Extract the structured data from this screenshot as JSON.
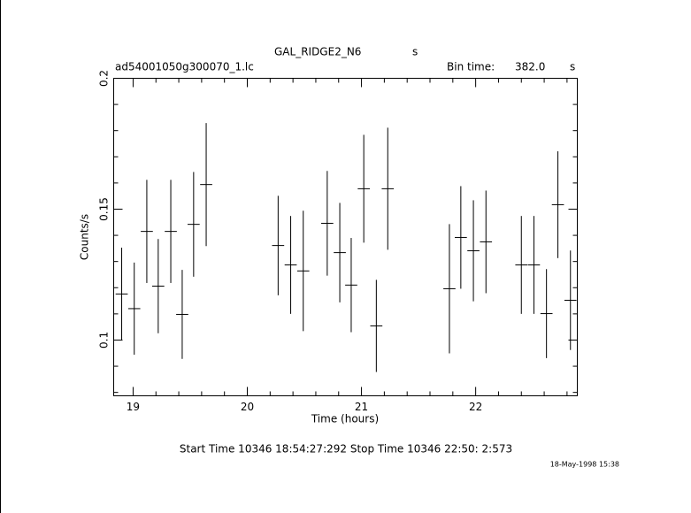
{
  "chart_data": {
    "type": "errorbar",
    "title": "GAL_RIDGE2_N6",
    "title_unit": "s",
    "file_label": "ad54001050g300070_1.lc",
    "bin_time_label": "Bin time:",
    "bin_time": "382.0",
    "bin_time_unit": "s",
    "y_label": "Counts/s",
    "x_label": "Time (hours)",
    "footer": "Start Time 10346  18:54:27:292    Stop Time 10346  22:50: 2:573",
    "timestamp": "18-May-1998 15:38",
    "color": "#000000",
    "xlim": [
      18.83,
      22.89
    ],
    "ylim": [
      0.0787,
      0.2
    ],
    "xticks": [
      19,
      20,
      21,
      22
    ],
    "yticks": [
      0.1,
      0.15,
      0.2
    ],
    "xminorticks": [
      19.2,
      19.4,
      19.6,
      19.8,
      20.2,
      20.4,
      20.6,
      20.8,
      21.2,
      21.4,
      21.6,
      21.8,
      22.2,
      22.4,
      22.6,
      22.8
    ],
    "yminorticks": [
      0.08,
      0.09,
      0.11,
      0.12,
      0.13,
      0.14,
      0.16,
      0.17,
      0.18,
      0.19
    ],
    "x": [
      18.9,
      19.01,
      19.12,
      19.22,
      19.33,
      19.43,
      19.53,
      19.64,
      20.27,
      20.38,
      20.49,
      20.7,
      20.81,
      20.91,
      21.02,
      21.13,
      21.23,
      21.77,
      21.87,
      21.98,
      22.09,
      22.4,
      22.51,
      22.62,
      22.72,
      22.83
    ],
    "xerr": 0.053,
    "values": [
      0.1176,
      0.112,
      0.1415,
      0.1206,
      0.1415,
      0.1098,
      0.1442,
      0.1594,
      0.1361,
      0.1287,
      0.1264,
      0.1446,
      0.1334,
      0.121,
      0.1578,
      0.1054,
      0.1578,
      0.1196,
      0.1392,
      0.1341,
      0.1375,
      0.1287,
      0.1287,
      0.1101,
      0.1517,
      0.1152
    ],
    "yerr": [
      0.0177,
      0.0176,
      0.0197,
      0.018,
      0.0197,
      0.017,
      0.02,
      0.0235,
      0.019,
      0.0187,
      0.023,
      0.02,
      0.019,
      0.018,
      0.0206,
      0.0176,
      0.0233,
      0.0247,
      0.0196,
      0.0193,
      0.0196,
      0.0187,
      0.0187,
      0.017,
      0.0204,
      0.019
    ]
  }
}
